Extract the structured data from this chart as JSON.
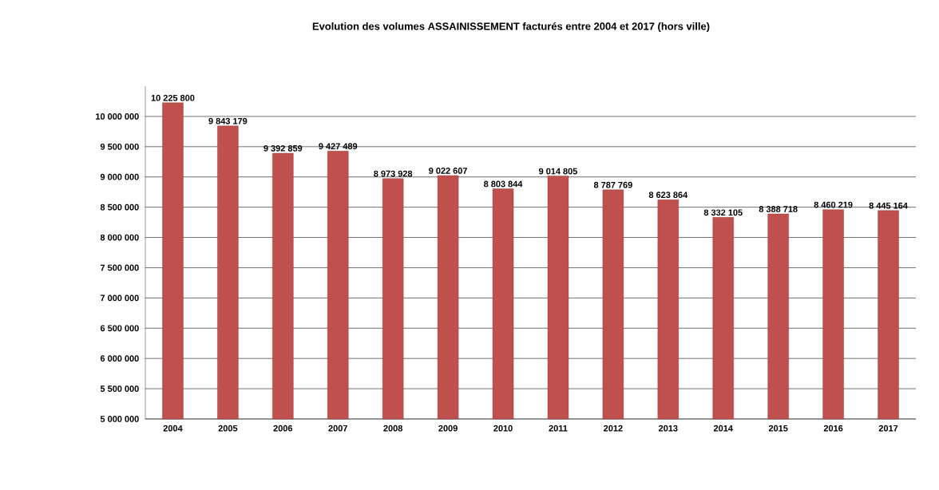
{
  "chart_data": {
    "type": "bar",
    "title": "Evolution des volumes ASSAINISSEMENT facturés entre 2004 et 2017 (hors ville)",
    "categories": [
      "2004",
      "2005",
      "2006",
      "2007",
      "2008",
      "2009",
      "2010",
      "2011",
      "2012",
      "2013",
      "2014",
      "2015",
      "2016",
      "2017"
    ],
    "values": [
      10225800,
      9843179,
      9392859,
      9427489,
      8973928,
      9022607,
      8803844,
      9014805,
      8787769,
      8623864,
      8332105,
      8388718,
      8460219,
      8445164
    ],
    "value_labels": [
      "10 225 800",
      "9 843 179",
      "9 392 859",
      "9 427 489",
      "8 973 928",
      "9 022 607",
      "8 803 844",
      "9 014 805",
      "8 787 769",
      "8 623 864",
      "8 332 105",
      "8 388 718",
      "8 460 219",
      "8 445 164"
    ],
    "color": "#c0504d",
    "ylim": [
      5000000,
      10500000
    ],
    "yticks": [
      {
        "value": 5000000,
        "label": "5 000 000"
      },
      {
        "value": 5500000,
        "label": "5 500 000"
      },
      {
        "value": 6000000,
        "label": "6 000 000"
      },
      {
        "value": 6500000,
        "label": "6 500 000"
      },
      {
        "value": 7000000,
        "label": "7 000 000"
      },
      {
        "value": 7500000,
        "label": "7 500 000"
      },
      {
        "value": 8000000,
        "label": "8 000 000"
      },
      {
        "value": 8500000,
        "label": "8 500 000"
      },
      {
        "value": 9000000,
        "label": "9 000 000"
      },
      {
        "value": 9500000,
        "label": "9 500 000"
      },
      {
        "value": 10000000,
        "label": "10 000 000"
      }
    ],
    "grid": "y"
  }
}
